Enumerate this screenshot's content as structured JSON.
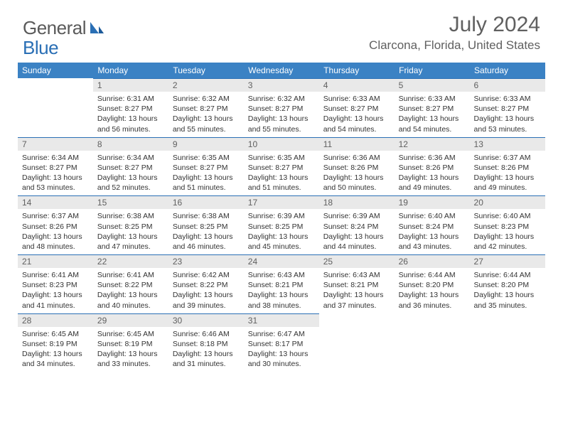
{
  "brand": {
    "general": "General",
    "blue": "Blue"
  },
  "title": "July 2024",
  "location": "Clarcona, Florida, United States",
  "colors": {
    "header_bg": "#3b82c4",
    "header_text": "#ffffff",
    "daynum_bg": "#e9e9e9",
    "daynum_border": "#2a6fb5",
    "body_text": "#333333",
    "muted_text": "#606060",
    "brand_blue": "#2a6fb5"
  },
  "weekdays": [
    "Sunday",
    "Monday",
    "Tuesday",
    "Wednesday",
    "Thursday",
    "Friday",
    "Saturday"
  ],
  "weeks": [
    [
      null,
      {
        "n": "1",
        "sr": "6:31 AM",
        "ss": "8:27 PM",
        "dl": "13 hours and 56 minutes."
      },
      {
        "n": "2",
        "sr": "6:32 AM",
        "ss": "8:27 PM",
        "dl": "13 hours and 55 minutes."
      },
      {
        "n": "3",
        "sr": "6:32 AM",
        "ss": "8:27 PM",
        "dl": "13 hours and 55 minutes."
      },
      {
        "n": "4",
        "sr": "6:33 AM",
        "ss": "8:27 PM",
        "dl": "13 hours and 54 minutes."
      },
      {
        "n": "5",
        "sr": "6:33 AM",
        "ss": "8:27 PM",
        "dl": "13 hours and 54 minutes."
      },
      {
        "n": "6",
        "sr": "6:33 AM",
        "ss": "8:27 PM",
        "dl": "13 hours and 53 minutes."
      }
    ],
    [
      {
        "n": "7",
        "sr": "6:34 AM",
        "ss": "8:27 PM",
        "dl": "13 hours and 53 minutes."
      },
      {
        "n": "8",
        "sr": "6:34 AM",
        "ss": "8:27 PM",
        "dl": "13 hours and 52 minutes."
      },
      {
        "n": "9",
        "sr": "6:35 AM",
        "ss": "8:27 PM",
        "dl": "13 hours and 51 minutes."
      },
      {
        "n": "10",
        "sr": "6:35 AM",
        "ss": "8:27 PM",
        "dl": "13 hours and 51 minutes."
      },
      {
        "n": "11",
        "sr": "6:36 AM",
        "ss": "8:26 PM",
        "dl": "13 hours and 50 minutes."
      },
      {
        "n": "12",
        "sr": "6:36 AM",
        "ss": "8:26 PM",
        "dl": "13 hours and 49 minutes."
      },
      {
        "n": "13",
        "sr": "6:37 AM",
        "ss": "8:26 PM",
        "dl": "13 hours and 49 minutes."
      }
    ],
    [
      {
        "n": "14",
        "sr": "6:37 AM",
        "ss": "8:26 PM",
        "dl": "13 hours and 48 minutes."
      },
      {
        "n": "15",
        "sr": "6:38 AM",
        "ss": "8:25 PM",
        "dl": "13 hours and 47 minutes."
      },
      {
        "n": "16",
        "sr": "6:38 AM",
        "ss": "8:25 PM",
        "dl": "13 hours and 46 minutes."
      },
      {
        "n": "17",
        "sr": "6:39 AM",
        "ss": "8:25 PM",
        "dl": "13 hours and 45 minutes."
      },
      {
        "n": "18",
        "sr": "6:39 AM",
        "ss": "8:24 PM",
        "dl": "13 hours and 44 minutes."
      },
      {
        "n": "19",
        "sr": "6:40 AM",
        "ss": "8:24 PM",
        "dl": "13 hours and 43 minutes."
      },
      {
        "n": "20",
        "sr": "6:40 AM",
        "ss": "8:23 PM",
        "dl": "13 hours and 42 minutes."
      }
    ],
    [
      {
        "n": "21",
        "sr": "6:41 AM",
        "ss": "8:23 PM",
        "dl": "13 hours and 41 minutes."
      },
      {
        "n": "22",
        "sr": "6:41 AM",
        "ss": "8:22 PM",
        "dl": "13 hours and 40 minutes."
      },
      {
        "n": "23",
        "sr": "6:42 AM",
        "ss": "8:22 PM",
        "dl": "13 hours and 39 minutes."
      },
      {
        "n": "24",
        "sr": "6:43 AM",
        "ss": "8:21 PM",
        "dl": "13 hours and 38 minutes."
      },
      {
        "n": "25",
        "sr": "6:43 AM",
        "ss": "8:21 PM",
        "dl": "13 hours and 37 minutes."
      },
      {
        "n": "26",
        "sr": "6:44 AM",
        "ss": "8:20 PM",
        "dl": "13 hours and 36 minutes."
      },
      {
        "n": "27",
        "sr": "6:44 AM",
        "ss": "8:20 PM",
        "dl": "13 hours and 35 minutes."
      }
    ],
    [
      {
        "n": "28",
        "sr": "6:45 AM",
        "ss": "8:19 PM",
        "dl": "13 hours and 34 minutes."
      },
      {
        "n": "29",
        "sr": "6:45 AM",
        "ss": "8:19 PM",
        "dl": "13 hours and 33 minutes."
      },
      {
        "n": "30",
        "sr": "6:46 AM",
        "ss": "8:18 PM",
        "dl": "13 hours and 31 minutes."
      },
      {
        "n": "31",
        "sr": "6:47 AM",
        "ss": "8:17 PM",
        "dl": "13 hours and 30 minutes."
      },
      null,
      null,
      null
    ]
  ],
  "labels": {
    "sunrise": "Sunrise:",
    "sunset": "Sunset:",
    "daylight": "Daylight:"
  }
}
